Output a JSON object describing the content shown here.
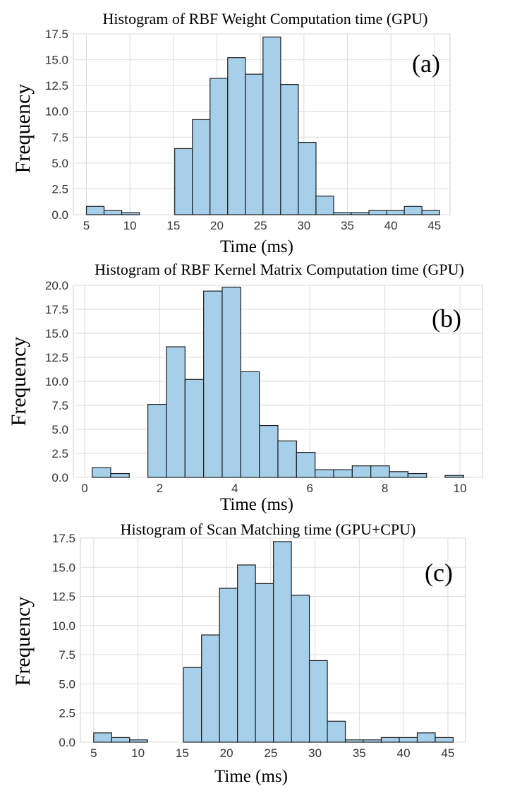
{
  "chart_data": [
    {
      "type": "bar",
      "title": "Histogram of RBF Weight Computation time (GPU)",
      "panel_label": "(a)",
      "xlabel": "Time (ms)",
      "ylabel": "Frequency",
      "xlim": [
        3.5,
        46.8
      ],
      "ylim": [
        0,
        17.5
      ],
      "xticks": [
        5,
        10,
        15,
        20,
        25,
        30,
        35,
        40,
        45
      ],
      "xtick_labels": [
        "5",
        "10",
        "15",
        "20",
        "25",
        "30",
        "35",
        "40",
        "45"
      ],
      "yticks": [
        0,
        2.5,
        5,
        7.5,
        10,
        12.5,
        15,
        17.5
      ],
      "ytick_labels": [
        "0.0",
        "2.5",
        "5.0",
        "7.5",
        "10.0",
        "12.5",
        "15.0",
        "17.5"
      ],
      "bin_start": 5,
      "bin_width": 2.03,
      "values": [
        0.8,
        0.4,
        0.2,
        0,
        0,
        6.4,
        9.2,
        13.2,
        15.2,
        13.6,
        17.2,
        12.6,
        7.0,
        1.8,
        0.2,
        0.2,
        0.4,
        0.4,
        0.8,
        0.4
      ]
    },
    {
      "type": "bar",
      "title": "Histogram of RBF Kernel Matrix Computation time (GPU)",
      "panel_label": "(b)",
      "xlabel": "Time (ms)",
      "ylabel": "Frequency",
      "xlim": [
        -0.3,
        10.6
      ],
      "ylim": [
        0,
        20
      ],
      "xticks": [
        0,
        2,
        4,
        6,
        8,
        10
      ],
      "xtick_labels": [
        "0",
        "2",
        "4",
        "6",
        "8",
        "10"
      ],
      "yticks": [
        0,
        2.5,
        5,
        7.5,
        10,
        12.5,
        15,
        17.5,
        20
      ],
      "ytick_labels": [
        "0.0",
        "2.5",
        "5.0",
        "7.5",
        "10.0",
        "12.5",
        "15.0",
        "17.5",
        "20.0"
      ],
      "bin_start": 0.2,
      "bin_width": 0.495,
      "values": [
        1.0,
        0.4,
        0,
        7.6,
        13.6,
        10.2,
        19.4,
        19.8,
        11.0,
        5.4,
        3.8,
        2.6,
        0.8,
        0.8,
        1.2,
        1.2,
        0.6,
        0.4,
        0,
        0.2
      ]
    },
    {
      "type": "bar",
      "title": "Histogram of Scan Matching time (GPU+CPU)",
      "panel_label": "(c)",
      "xlabel": "Time (ms)",
      "ylabel": "Frequency",
      "xlim": [
        3.5,
        47.0
      ],
      "ylim": [
        0,
        17.5
      ],
      "xticks": [
        5,
        10,
        15,
        20,
        25,
        30,
        35,
        40,
        45
      ],
      "xtick_labels": [
        "5",
        "10",
        "15",
        "20",
        "25",
        "30",
        "35",
        "40",
        "45"
      ],
      "yticks": [
        0,
        2.5,
        5,
        7.5,
        10,
        12.5,
        15,
        17.5
      ],
      "ytick_labels": [
        "0.0",
        "2.5",
        "5.0",
        "7.5",
        "10.0",
        "12.5",
        "15.0",
        "17.5"
      ],
      "bin_start": 5,
      "bin_width": 2.03,
      "values": [
        0.8,
        0.4,
        0.2,
        0,
        0,
        6.4,
        9.2,
        13.2,
        15.2,
        13.6,
        17.2,
        12.6,
        7.0,
        1.8,
        0.2,
        0.2,
        0.4,
        0.4,
        0.8,
        0.4
      ]
    }
  ]
}
